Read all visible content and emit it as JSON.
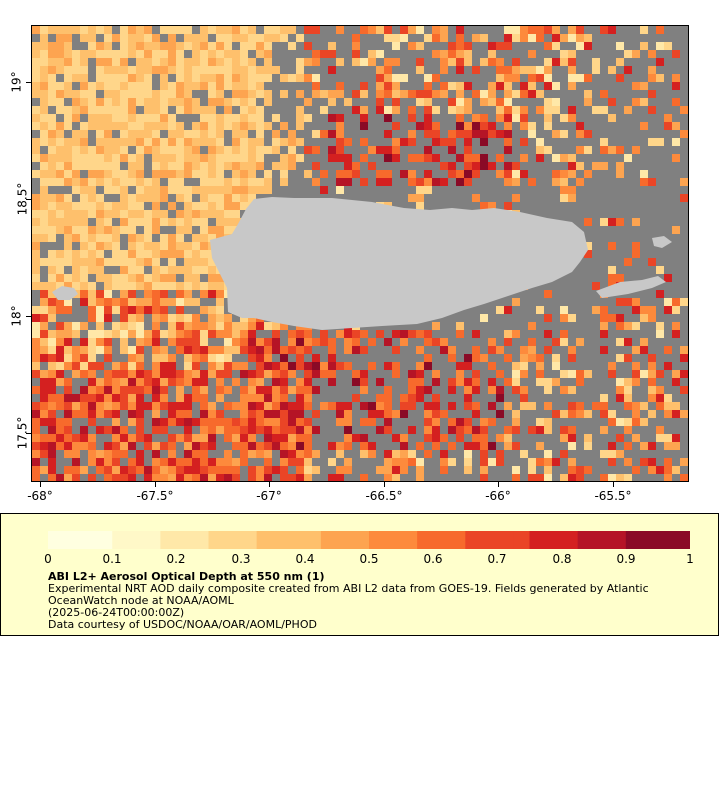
{
  "map": {
    "x_ticks": [
      "-68°",
      "-67.5°",
      "-67°",
      "-66.5°",
      "-66°",
      "-65.5°"
    ],
    "y_ticks": [
      "19°",
      "18.5°",
      "18°",
      "17.5°"
    ],
    "colors": {
      "no_data": "#808080",
      "land": "#c8c8c8",
      "frame_background": "#ffffcc"
    }
  },
  "colorbar": {
    "labels": [
      "0",
      "0.1",
      "0.2",
      "0.3",
      "0.4",
      "0.5",
      "0.6",
      "0.7",
      "0.8",
      "0.9",
      "1"
    ],
    "colors": [
      "#ffffe0",
      "#fff8c8",
      "#ffe8a8",
      "#ffd68a",
      "#fec06c",
      "#fda450",
      "#fd8a3c",
      "#f76a2c",
      "#ea4526",
      "#d42020",
      "#b51426",
      "#8a0a26"
    ]
  },
  "legend": {
    "title": "ABI L2+ Aerosol Optical Depth at 550 nm (1)",
    "line1": "Experimental NRT AOD daily composite created from ABI L2 data from GOES-19. Fields generated by Atlantic OceanWatch node at NOAA/AOML",
    "line2": "(2025-06-24T00:00:00Z)",
    "line3": "Data courtesy of USDOC/NOAA/OAR/AOML/PHOD"
  }
}
